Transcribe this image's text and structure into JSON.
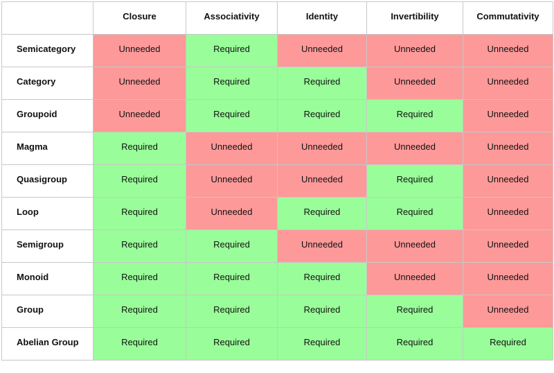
{
  "table": {
    "corner": "",
    "columns": [
      "Closure",
      "Associativity",
      "Identity",
      "Invertibility",
      "Commutativity"
    ],
    "rows": [
      {
        "name": "Semicategory",
        "values": [
          "Unneeded",
          "Required",
          "Unneeded",
          "Unneeded",
          "Unneeded"
        ]
      },
      {
        "name": "Category",
        "values": [
          "Unneeded",
          "Required",
          "Required",
          "Unneeded",
          "Unneeded"
        ]
      },
      {
        "name": "Groupoid",
        "values": [
          "Unneeded",
          "Required",
          "Required",
          "Required",
          "Unneeded"
        ]
      },
      {
        "name": "Magma",
        "values": [
          "Required",
          "Unneeded",
          "Unneeded",
          "Unneeded",
          "Unneeded"
        ]
      },
      {
        "name": "Quasigroup",
        "values": [
          "Required",
          "Unneeded",
          "Unneeded",
          "Required",
          "Unneeded"
        ]
      },
      {
        "name": "Loop",
        "values": [
          "Required",
          "Unneeded",
          "Required",
          "Required",
          "Unneeded"
        ]
      },
      {
        "name": "Semigroup",
        "values": [
          "Required",
          "Required",
          "Unneeded",
          "Unneeded",
          "Unneeded"
        ]
      },
      {
        "name": "Monoid",
        "values": [
          "Required",
          "Required",
          "Required",
          "Unneeded",
          "Unneeded"
        ]
      },
      {
        "name": "Group",
        "values": [
          "Required",
          "Required",
          "Required",
          "Required",
          "Unneeded"
        ]
      },
      {
        "name": "Abelian Group",
        "values": [
          "Required",
          "Required",
          "Required",
          "Required",
          "Required"
        ]
      }
    ]
  },
  "colors": {
    "required": "#99fe99",
    "unneeded": "#fe9999",
    "border": "#c7c7c7"
  }
}
